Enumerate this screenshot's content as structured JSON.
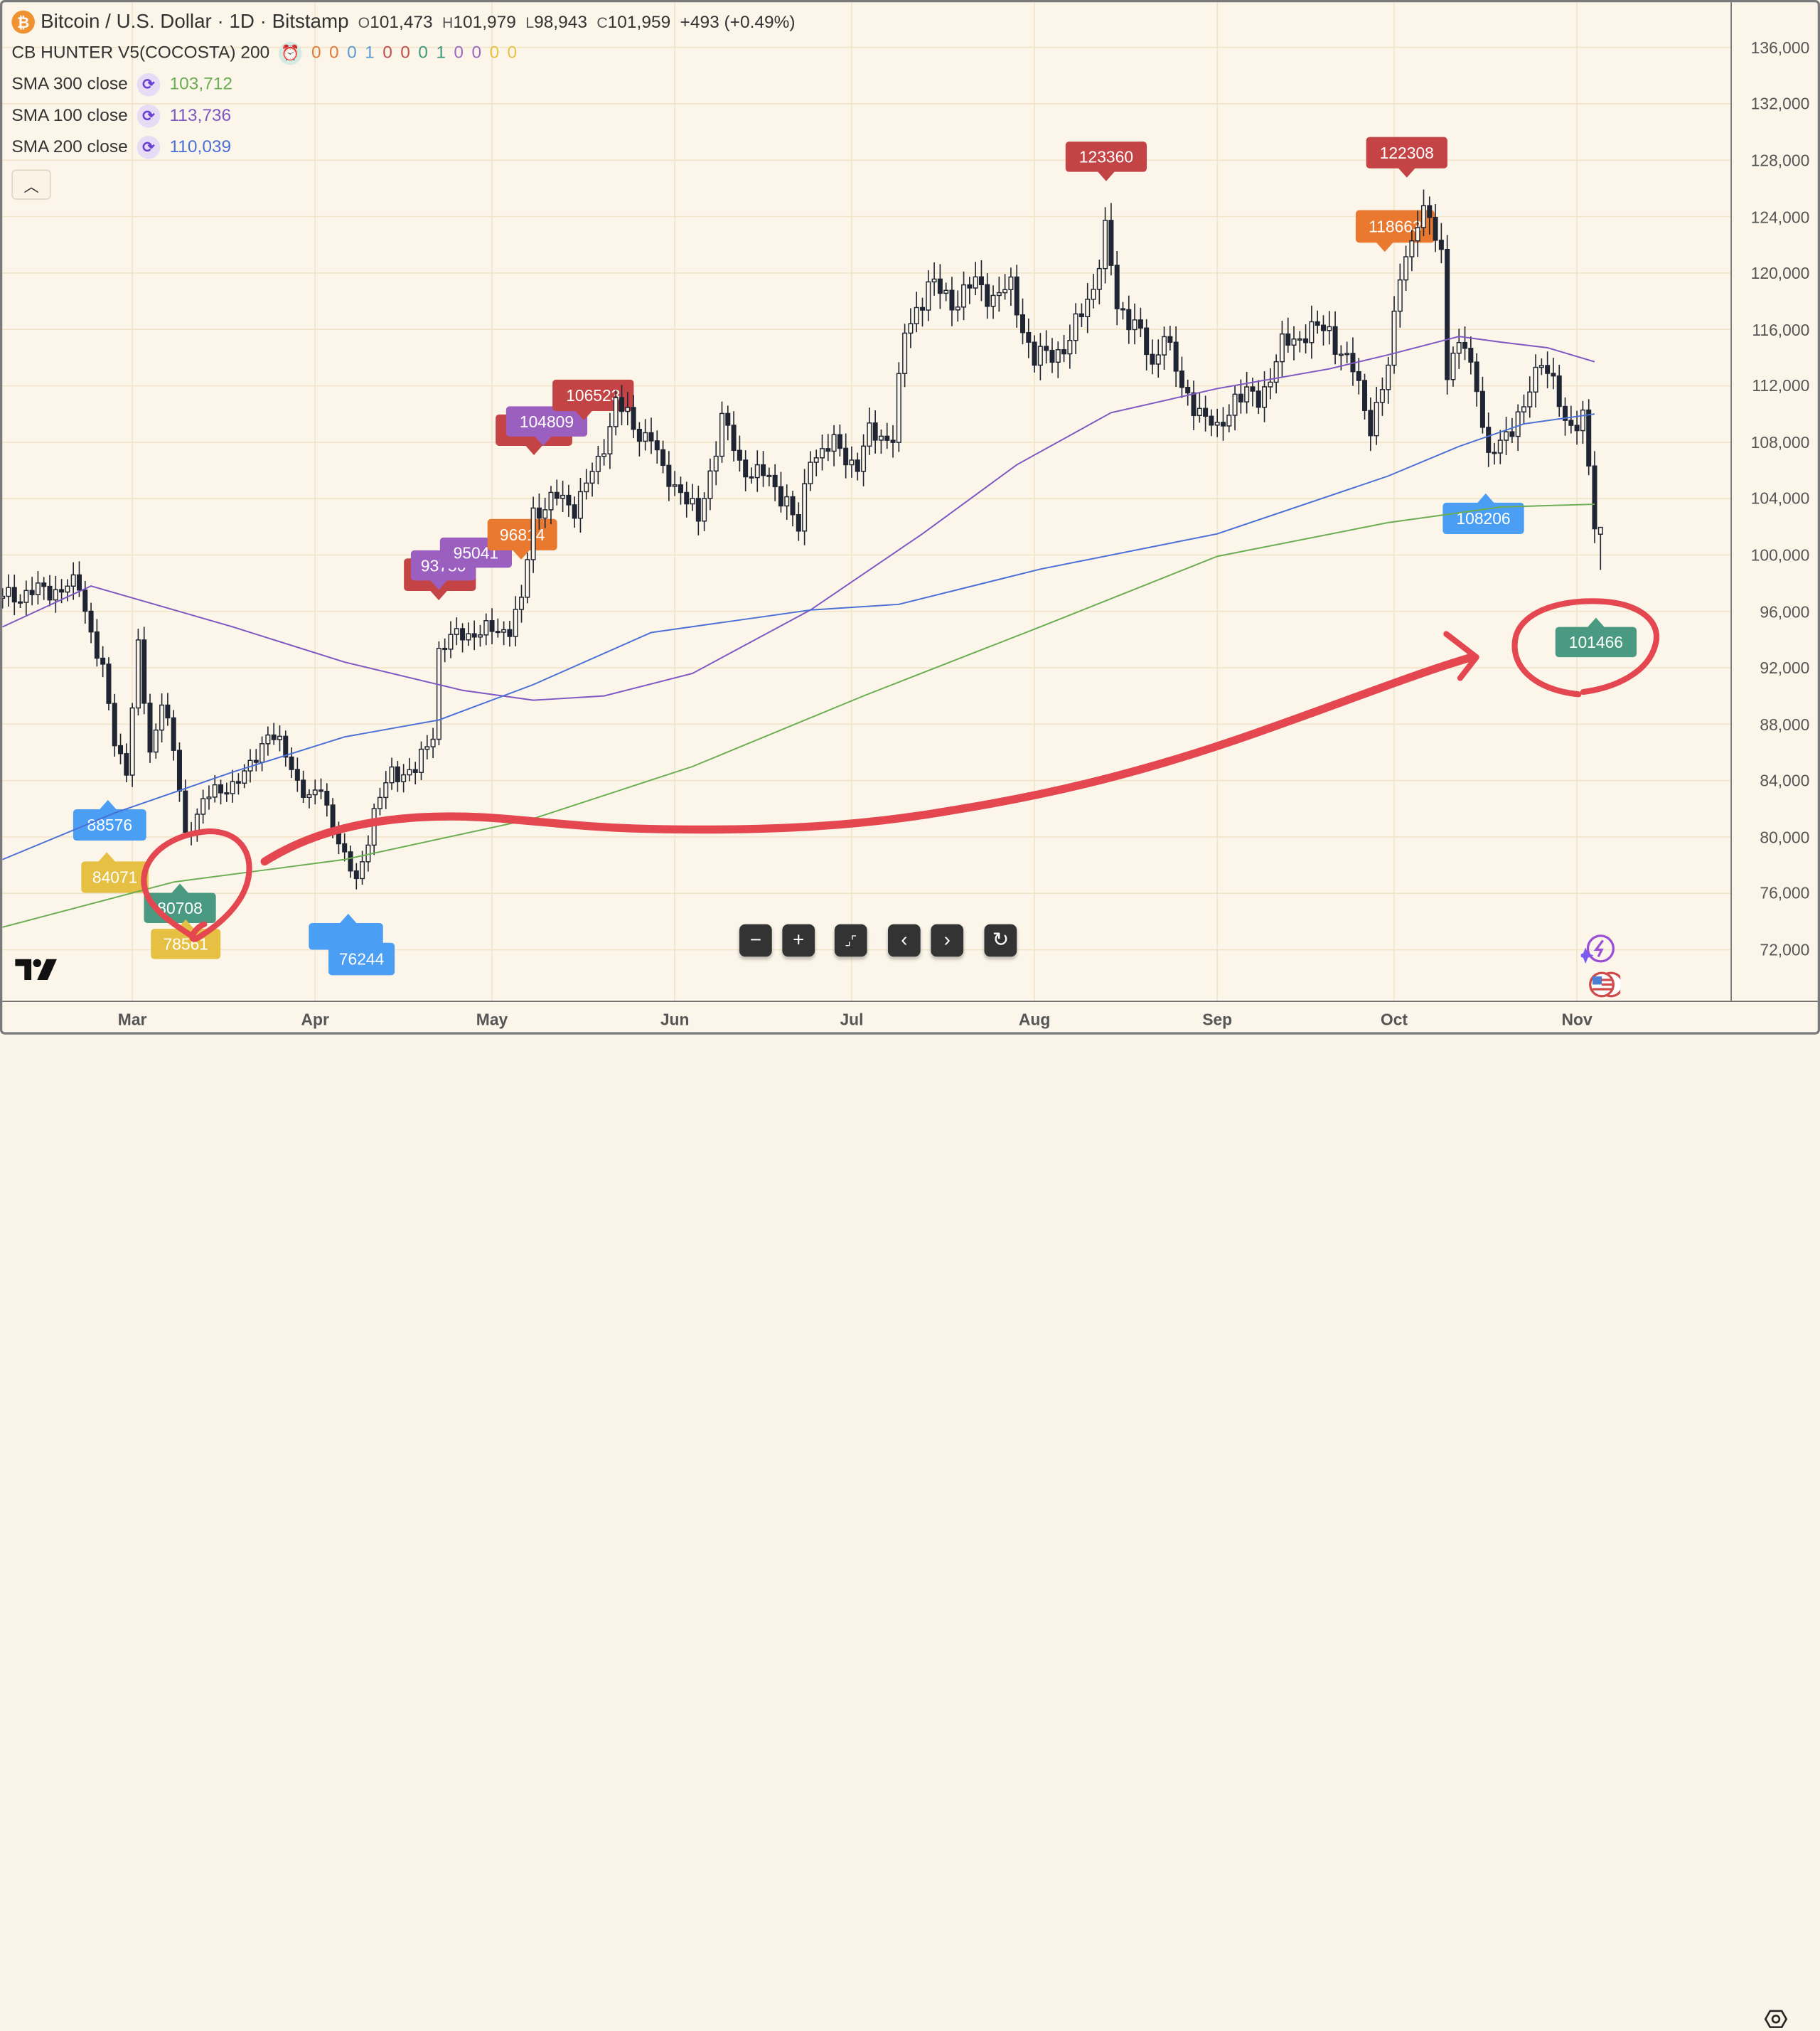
{
  "header": {
    "symbol_icon": "bitcoin-icon",
    "title": "Bitcoin / U.S. Dollar · 1D · Bitstamp",
    "ohlc": [
      {
        "key": "O",
        "value": "101,473"
      },
      {
        "key": "H",
        "value": "101,979"
      },
      {
        "key": "L",
        "value": "98,943"
      },
      {
        "key": "C",
        "value": "101,959"
      }
    ],
    "change": "+493 (+0.49%)"
  },
  "indicators": {
    "cb_hunter": {
      "label": "CB HUNTER V5(COCOSTA) 200",
      "icon": "alarm-clock-icon",
      "values": [
        {
          "v": "0",
          "color": "#e07b39"
        },
        {
          "v": "0",
          "color": "#e07b39"
        },
        {
          "v": "0",
          "color": "#5b9bd5"
        },
        {
          "v": "1",
          "color": "#5b9bd5"
        },
        {
          "v": "0",
          "color": "#c0504d"
        },
        {
          "v": "0",
          "color": "#c0504d"
        },
        {
          "v": "0",
          "color": "#3f9a7c"
        },
        {
          "v": "1",
          "color": "#3f9a7c"
        },
        {
          "v": "0",
          "color": "#9b6bc4"
        },
        {
          "v": "0",
          "color": "#9b6bc4"
        },
        {
          "v": "0",
          "color": "#e6c440"
        },
        {
          "v": "0",
          "color": "#e6c440"
        }
      ]
    },
    "sma": [
      {
        "label": "SMA 300 close",
        "value": "103,712",
        "color": "#6aad52"
      },
      {
        "label": "SMA 100 close",
        "value": "113,736",
        "color": "#7e57c2"
      },
      {
        "label": "SMA 200 close",
        "value": "110,039",
        "color": "#4a6fd6"
      }
    ],
    "collapse_icon": "chevron-up-icon"
  },
  "controls": [
    {
      "name": "zoom-out-button",
      "glyph": "−"
    },
    {
      "name": "zoom-in-button",
      "glyph": "+"
    },
    {
      "name": "reset-scale-button",
      "glyph": "⌟⌜"
    },
    {
      "name": "scroll-left-button",
      "glyph": "‹"
    },
    {
      "name": "scroll-right-button",
      "glyph": "›"
    },
    {
      "name": "reset-chart-button",
      "glyph": "↻"
    }
  ],
  "colors": {
    "background": "#fcf6ea",
    "grid": "#f2e4c8",
    "candle": "#1f2533",
    "drawing": "#e4474f"
  },
  "chart_data": {
    "type": "candlestick",
    "price_axis": {
      "ticks": [
        "136,000",
        "132,000",
        "128,000",
        "124,000",
        "120,000",
        "116,000",
        "112,000",
        "108,000",
        "104,000",
        "100,000",
        "96,000",
        "92,000",
        "88,000",
        "84,000",
        "80,000",
        "76,000",
        "72,000"
      ],
      "side": "right"
    },
    "time_axis": {
      "ticks": [
        "Mar",
        "Apr",
        "May",
        "Jun",
        "Jul",
        "Aug",
        "Sep",
        "Oct",
        "Nov"
      ]
    },
    "grid": true,
    "last_candle": {
      "open": 101473,
      "high": 101979,
      "low": 98943,
      "close": 101959
    },
    "close_path": [
      [
        "02-07",
        97000
      ],
      [
        "02-13",
        97400
      ],
      [
        "02-20",
        97800
      ],
      [
        "02-24",
        91600
      ],
      [
        "02-26",
        86700
      ],
      [
        "02-28",
        85000
      ],
      [
        "03-02",
        93300
      ],
      [
        "03-04",
        85800
      ],
      [
        "03-06",
        90000
      ],
      [
        "03-08",
        86000
      ],
      [
        "03-10",
        80100
      ],
      [
        "03-13",
        82500
      ],
      [
        "03-16",
        83400
      ],
      [
        "03-20",
        84200
      ],
      [
        "03-24",
        87500
      ],
      [
        "03-27",
        85800
      ],
      [
        "03-31",
        82500
      ],
      [
        "04-02",
        83400
      ],
      [
        "04-06",
        78400
      ],
      [
        "04-08",
        76800
      ],
      [
        "04-11",
        81700
      ],
      [
        "04-14",
        84600
      ],
      [
        "04-18",
        84600
      ],
      [
        "04-21",
        87500
      ],
      [
        "04-22",
        93300
      ],
      [
        "04-26",
        94500
      ],
      [
        "04-30",
        94500
      ],
      [
        "05-04",
        94900
      ],
      [
        "05-06",
        96500
      ],
      [
        "05-08",
        103100
      ],
      [
        "05-12",
        104000
      ],
      [
        "05-15",
        103500
      ],
      [
        "05-19",
        106400
      ],
      [
        "05-22",
        111000
      ],
      [
        "05-25",
        108900
      ],
      [
        "05-28",
        108500
      ],
      [
        "05-30",
        105600
      ],
      [
        "06-02",
        104800
      ],
      [
        "06-05",
        102300
      ],
      [
        "06-09",
        109700
      ],
      [
        "06-12",
        106400
      ],
      [
        "06-16",
        105600
      ],
      [
        "06-20",
        104000
      ],
      [
        "06-22",
        101500
      ],
      [
        "06-24",
        107200
      ],
      [
        "06-28",
        107700
      ],
      [
        "07-02",
        106400
      ],
      [
        "07-04",
        108500
      ],
      [
        "07-08",
        108500
      ],
      [
        "07-10",
        115500
      ],
      [
        "07-12",
        117500
      ],
      [
        "07-14",
        119200
      ],
      [
        "07-18",
        118000
      ],
      [
        "07-22",
        119200
      ],
      [
        "07-25",
        118400
      ],
      [
        "07-28",
        118800
      ],
      [
        "08-01",
        113800
      ],
      [
        "08-04",
        114300
      ],
      [
        "08-07",
        115100
      ],
      [
        "08-11",
        119200
      ],
      [
        "08-13",
        122900
      ],
      [
        "08-15",
        117500
      ],
      [
        "08-18",
        116700
      ],
      [
        "08-21",
        113000
      ],
      [
        "08-23",
        116300
      ],
      [
        "08-26",
        111400
      ],
      [
        "08-29",
        110500
      ],
      [
        "09-01",
        108500
      ],
      [
        "09-04",
        111400
      ],
      [
        "09-08",
        111000
      ],
      [
        "09-12",
        114700
      ],
      [
        "09-16",
        115900
      ],
      [
        "09-20",
        115900
      ],
      [
        "09-24",
        113000
      ],
      [
        "09-27",
        109300
      ],
      [
        "09-30",
        113000
      ],
      [
        "10-02",
        120400
      ],
      [
        "10-05",
        123300
      ],
      [
        "10-07",
        124100
      ],
      [
        "10-09",
        121700
      ],
      [
        "10-10",
        113000
      ],
      [
        "10-13",
        115100
      ],
      [
        "10-15",
        112200
      ],
      [
        "10-17",
        106400
      ],
      [
        "10-20",
        108900
      ],
      [
        "10-23",
        110100
      ],
      [
        "10-26",
        114300
      ],
      [
        "10-28",
        112200
      ],
      [
        "10-30",
        108900
      ],
      [
        "11-02",
        110100
      ],
      [
        "11-03",
        106400
      ],
      [
        "11-04",
        101500
      ]
    ],
    "series": [
      {
        "name": "SMA 100 close",
        "color": "#7e57c2",
        "points": [
          [
            "02-07",
            94900
          ],
          [
            "02-22",
            97800
          ],
          [
            "03-18",
            94900
          ],
          [
            "04-06",
            92400
          ],
          [
            "04-26",
            90400
          ],
          [
            "05-08",
            89700
          ],
          [
            "05-20",
            90000
          ],
          [
            "06-04",
            91600
          ],
          [
            "06-24",
            96100
          ],
          [
            "07-13",
            101500
          ],
          [
            "07-29",
            106400
          ],
          [
            "08-14",
            110100
          ],
          [
            "09-01",
            111800
          ],
          [
            "09-20",
            113200
          ],
          [
            "09-30",
            114200
          ],
          [
            "10-12",
            115500
          ],
          [
            "10-19",
            115100
          ],
          [
            "10-27",
            114700
          ],
          [
            "11-04",
            113700
          ]
        ]
      },
      {
        "name": "SMA 200 close",
        "color": "#4a6fd6",
        "points": [
          [
            "02-07",
            78400
          ],
          [
            "02-26",
            81700
          ],
          [
            "03-18",
            84600
          ],
          [
            "04-06",
            87100
          ],
          [
            "04-22",
            88300
          ],
          [
            "05-08",
            90800
          ],
          [
            "05-28",
            94500
          ],
          [
            "06-24",
            96100
          ],
          [
            "07-09",
            96500
          ],
          [
            "08-02",
            99000
          ],
          [
            "09-01",
            101500
          ],
          [
            "09-30",
            105600
          ],
          [
            "10-12",
            107700
          ],
          [
            "10-23",
            109300
          ],
          [
            "11-04",
            110000
          ]
        ]
      },
      {
        "name": "SMA 300 close",
        "color": "#6aad52",
        "points": [
          [
            "02-07",
            73600
          ],
          [
            "03-08",
            76800
          ],
          [
            "04-06",
            78400
          ],
          [
            "05-08",
            81300
          ],
          [
            "06-04",
            85000
          ],
          [
            "07-03",
            90000
          ],
          [
            "08-02",
            94900
          ],
          [
            "09-01",
            99900
          ],
          [
            "09-30",
            102300
          ],
          [
            "10-19",
            103400
          ],
          [
            "11-04",
            103600
          ]
        ]
      }
    ],
    "signal_labels": [
      {
        "text": "123360",
        "color": "#c44345",
        "dir": "down"
      },
      {
        "text": "122308",
        "color": "#c44345",
        "dir": "down"
      },
      {
        "text": "118663",
        "color": "#e8792f",
        "dir": "down"
      },
      {
        "text": "",
        "color": "#c44345",
        "dir": "down"
      },
      {
        "text": "104809",
        "color": "#9b5fc0",
        "dir": "down"
      },
      {
        "text": "106523",
        "color": "#c44345",
        "dir": "down"
      },
      {
        "text": "",
        "color": "#c44345",
        "dir": "down"
      },
      {
        "text": "93750",
        "color": "#9b5fc0",
        "dir": "down"
      },
      {
        "text": "95041",
        "color": "#9b5fc0",
        "dir": "none"
      },
      {
        "text": "96814",
        "color": "#e8792f",
        "dir": "down"
      },
      {
        "text": "88576",
        "color": "#4a9ff5",
        "dir": "up"
      },
      {
        "text": "84071",
        "color": "#e6c043",
        "dir": "up"
      },
      {
        "text": "80708",
        "color": "#4a9a82",
        "dir": "up"
      },
      {
        "text": "78561",
        "color": "#e6c043",
        "dir": "up"
      },
      {
        "text": "76244",
        "color": "#4a9ff5",
        "dir": "up"
      },
      {
        "text": "108206",
        "color": "#4a9ff5",
        "dir": "up"
      },
      {
        "text": "101466",
        "color": "#4a9a82",
        "dir": "up"
      }
    ]
  }
}
